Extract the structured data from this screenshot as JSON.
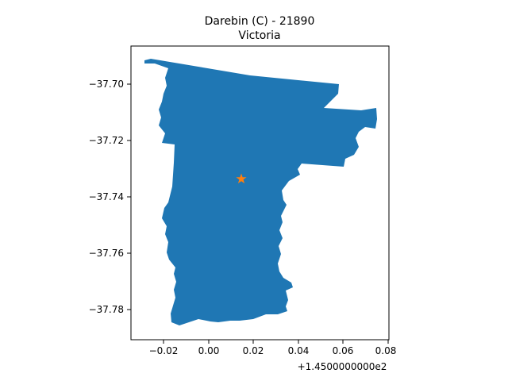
{
  "map": {
    "title_line1": "Darebin (C) - 21890",
    "title_line2": "Victoria",
    "x_offset_label": "+1.4500000000e2",
    "x_ticks": [
      "−0.02",
      "0.00",
      "0.02",
      "0.04",
      "0.06",
      "0.08"
    ],
    "y_ticks": [
      "−37.70",
      "−37.72",
      "−37.74",
      "−37.76",
      "−37.78"
    ],
    "region_color": "#1f77b4",
    "marker_color": "#ff7f0e",
    "marker_icon": "star-icon"
  }
}
